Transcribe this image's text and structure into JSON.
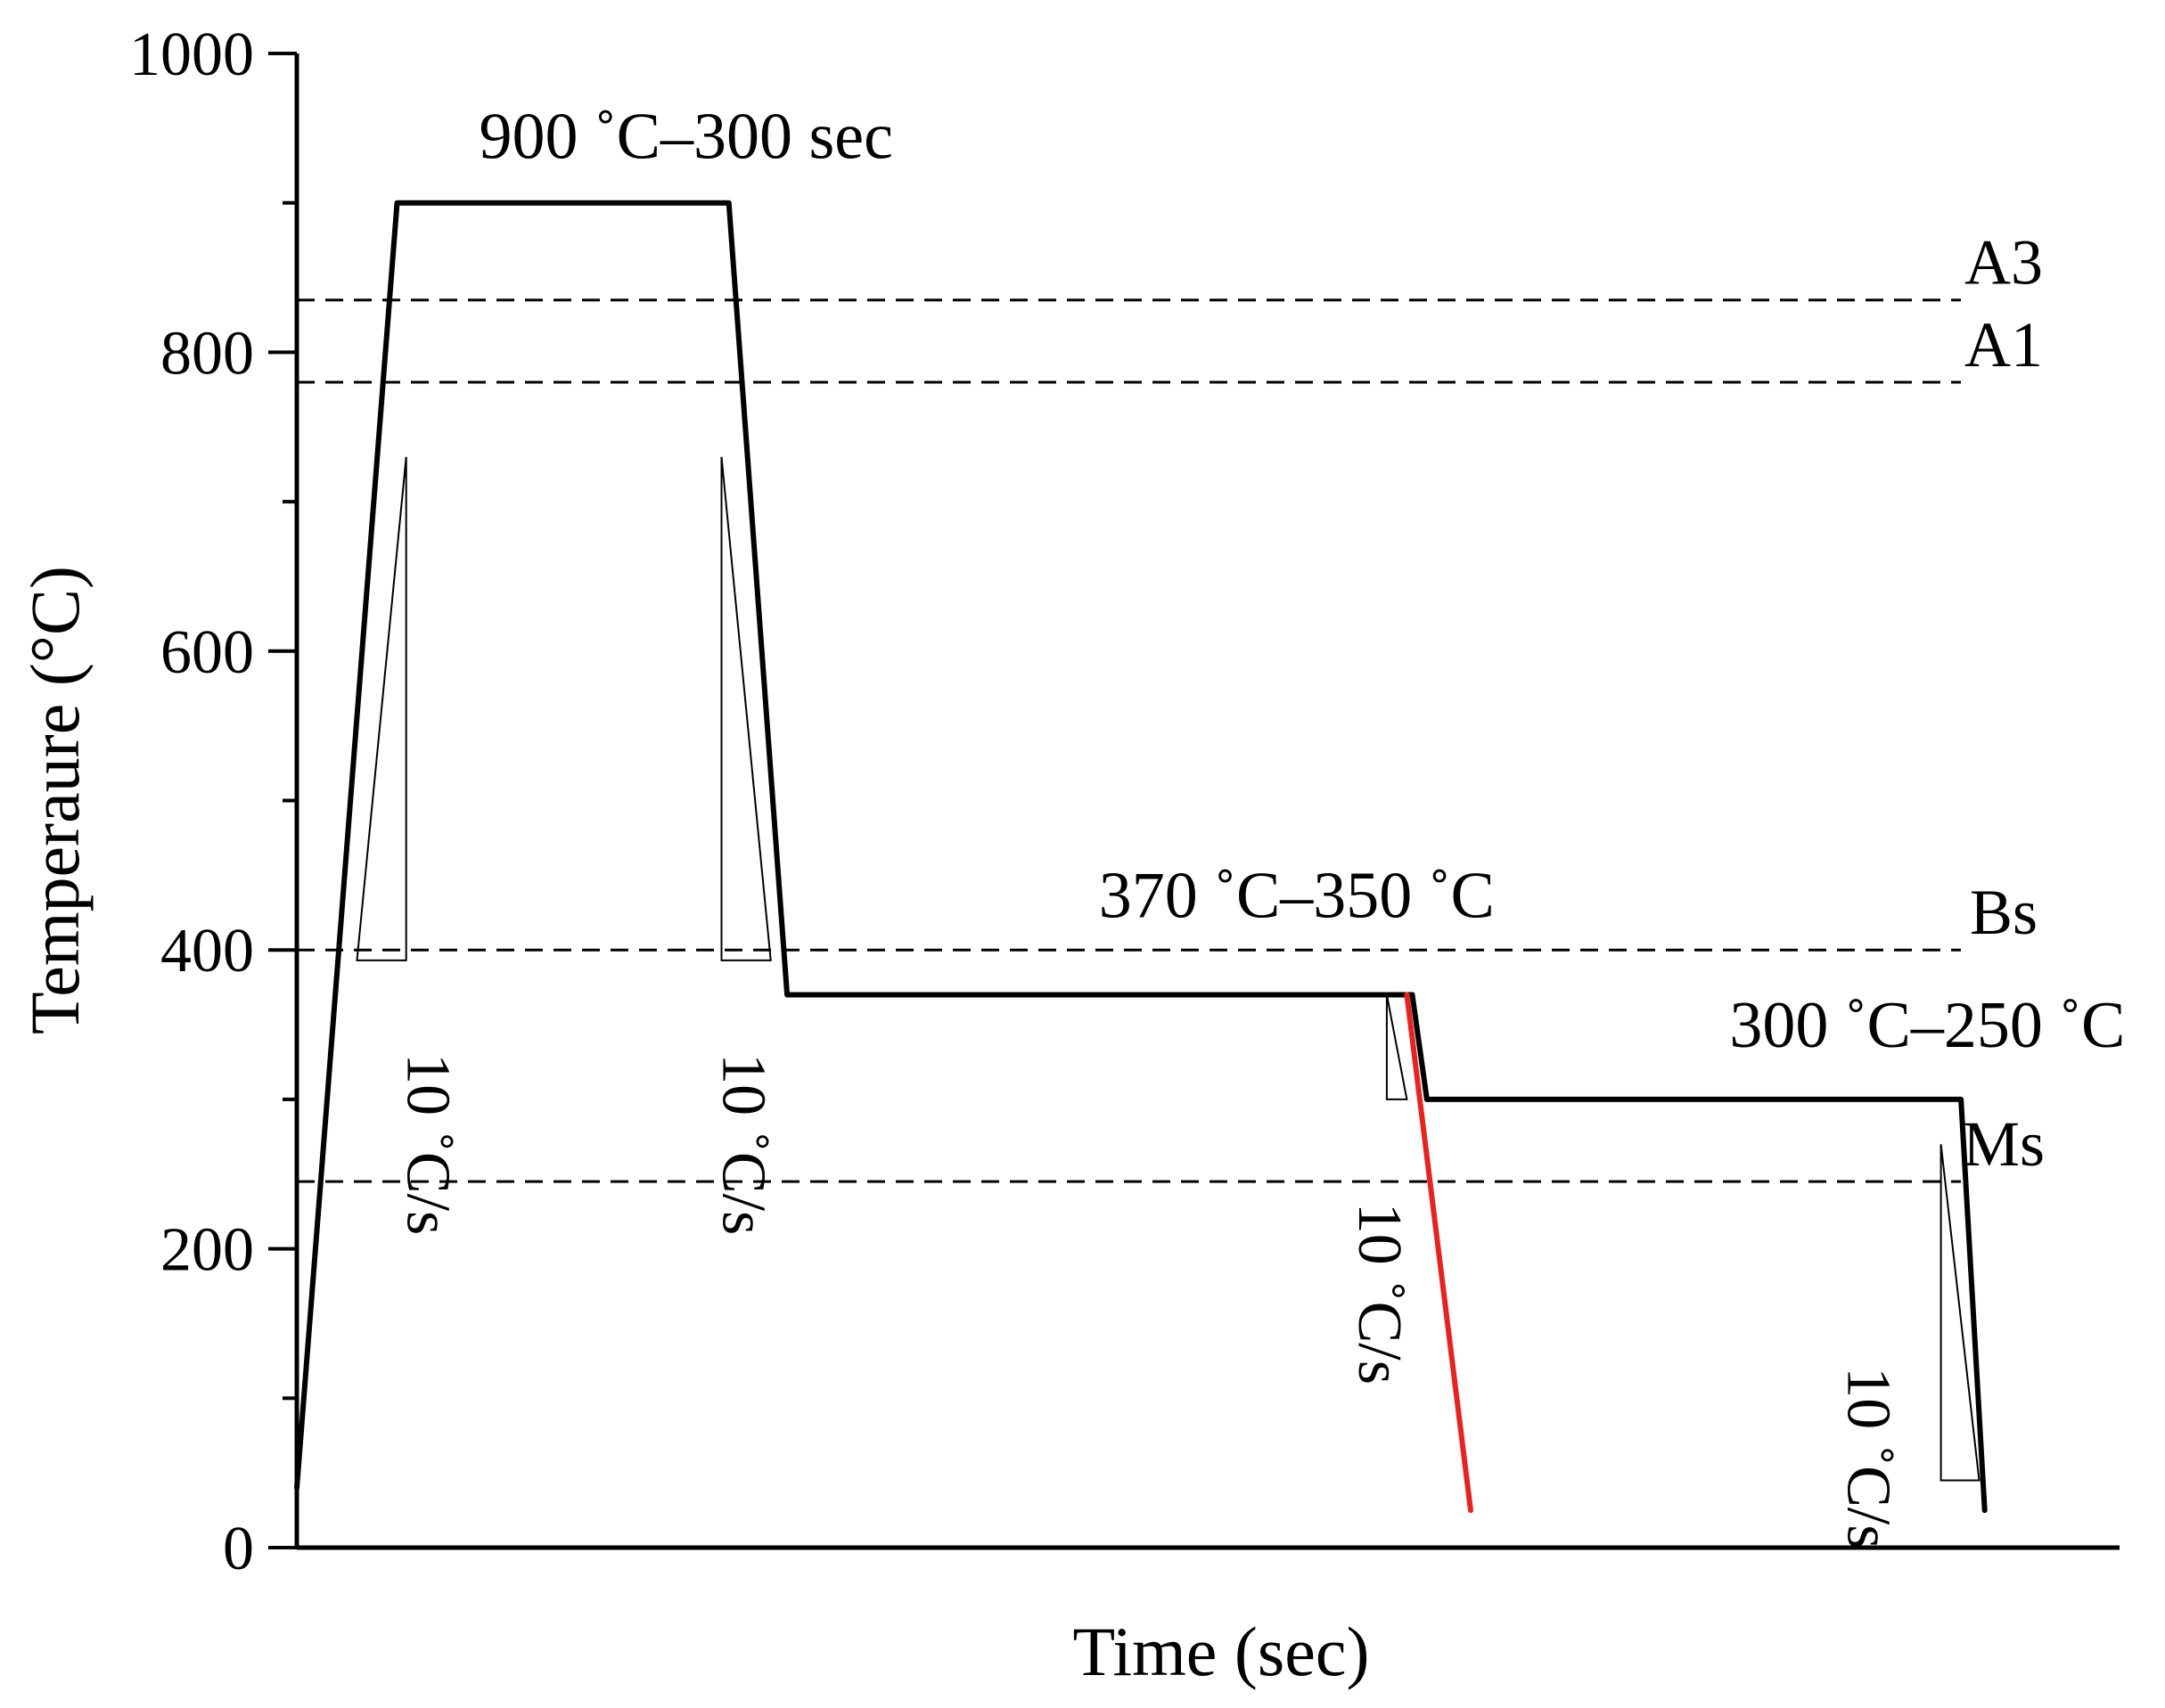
{
  "chart_data": {
    "type": "line",
    "title": "",
    "xlabel": "Time (sec)",
    "ylabel": "Temperaure (°C)",
    "ylim": [
      0,
      1000
    ],
    "yticks": [
      0,
      200,
      400,
      600,
      800,
      1000
    ],
    "xticks_shown": false,
    "grid": false,
    "legend": "none",
    "reference_lines": [
      {
        "label": "A3",
        "y": 835
      },
      {
        "label": "A1",
        "y": 780
      },
      {
        "label": "Bs",
        "y": 400
      },
      {
        "label": "Ms",
        "y": 245
      }
    ],
    "series": [
      {
        "color": "#000000",
        "x": [
          0,
          55,
          237,
          269,
          612,
          620
        ],
        "y": [
          40,
          900,
          900,
          370,
          370,
          300
        ]
      },
      {
        "color": "#e52421",
        "x": [
          609,
          644
        ],
        "y": [
          370,
          25
        ]
      },
      {
        "color": "#000000",
        "x": [
          620,
          913,
          926
        ],
        "y": [
          300,
          300,
          25
        ]
      }
    ],
    "annotations": [
      {
        "text": "900 ˚C–300 sec",
        "x": 100,
        "y": 930
      },
      {
        "text": "370 ˚C–350 ˚C",
        "x": 440,
        "y": 422
      },
      {
        "text": "300 ˚C–250 ˚C",
        "x": 786,
        "y": 335
      }
    ],
    "rate_labels": [
      {
        "text": "10 ˚C/s",
        "x": 61,
        "y": 270
      },
      {
        "text": "10 ˚C/s",
        "x": 234,
        "y": 270
      },
      {
        "text": "10 ˚C/s",
        "x": 583,
        "y": 170
      },
      {
        "text": "10 ˚C/s",
        "x": 851,
        "y": 60
      }
    ],
    "rate_triangles": [
      {
        "x": [
          33,
          60,
          60
        ],
        "y": [
          393,
          730,
          393
        ]
      },
      {
        "x": [
          233,
          233,
          260
        ],
        "y": [
          730,
          393,
          393
        ]
      },
      {
        "x": [
          598,
          598,
          609
        ],
        "y": [
          370,
          300,
          300
        ]
      },
      {
        "x": [
          902,
          902,
          923
        ],
        "y": [
          270,
          45,
          45
        ]
      }
    ]
  }
}
